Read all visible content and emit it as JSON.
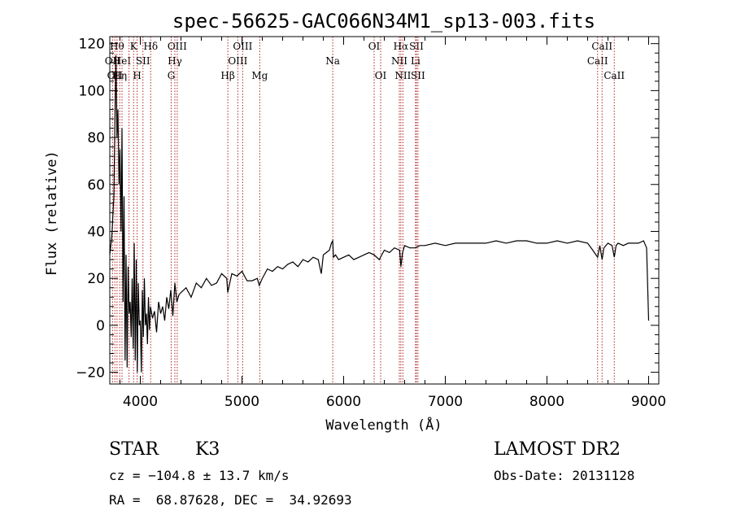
{
  "chart_data": {
    "type": "line",
    "title": "spec-56625-GAC066N34M1_sp13-003.fits",
    "xlabel": "Wavelength (Å)",
    "ylabel": "Flux (relative)",
    "xlim": [
      3700,
      9100
    ],
    "ylim": [
      -25,
      123
    ],
    "x_ticks": [
      4000,
      5000,
      6000,
      7000,
      8000,
      9000
    ],
    "y_ticks": [
      -20,
      0,
      20,
      40,
      60,
      80,
      100,
      120
    ],
    "grid": false,
    "line_color": "#000000",
    "marker_color": "#b22222",
    "series": [
      {
        "x": [
          3700,
          3720,
          3740,
          3760,
          3770,
          3780,
          3790,
          3800,
          3810,
          3820,
          3830,
          3840,
          3850,
          3860,
          3870,
          3880,
          3890,
          3900,
          3910,
          3920,
          3930,
          3940,
          3950,
          3960,
          3970,
          3980,
          3990,
          4000,
          4010,
          4020,
          4030,
          4040,
          4050,
          4060,
          4070,
          4080,
          4090,
          4100,
          4120,
          4140,
          4160,
          4180,
          4200,
          4220,
          4240,
          4260,
          4280,
          4300,
          4320,
          4340,
          4360,
          4380,
          4400,
          4450,
          4500,
          4550,
          4600,
          4650,
          4700,
          4750,
          4800,
          4850,
          4860,
          4900,
          4950,
          5000,
          5050,
          5100,
          5150,
          5170,
          5200,
          5250,
          5300,
          5350,
          5400,
          5450,
          5500,
          5550,
          5600,
          5650,
          5700,
          5750,
          5780,
          5800,
          5830,
          5860,
          5880,
          5893,
          5900,
          5920,
          5950,
          6000,
          6050,
          6100,
          6150,
          6200,
          6250,
          6300,
          6350,
          6400,
          6450,
          6500,
          6550,
          6563,
          6580,
          6600,
          6650,
          6700,
          6750,
          6800,
          6900,
          7000,
          7100,
          7200,
          7300,
          7400,
          7500,
          7600,
          7700,
          7800,
          7900,
          8000,
          8100,
          8200,
          8300,
          8400,
          8450,
          8498,
          8520,
          8542,
          8560,
          8600,
          8640,
          8662,
          8680,
          8700,
          8750,
          8800,
          8850,
          8900,
          8950,
          8980,
          9000
        ],
        "y": [
          30,
          38,
          55,
          115,
          80,
          92,
          60,
          75,
          40,
          84,
          10,
          55,
          -15,
          30,
          -18,
          25,
          5,
          10,
          -5,
          20,
          -10,
          35,
          -15,
          28,
          -20,
          18,
          0,
          2,
          -20,
          15,
          -5,
          20,
          0,
          5,
          -8,
          12,
          -2,
          8,
          3,
          6,
          -3,
          10,
          5,
          8,
          2,
          12,
          7,
          15,
          4,
          18,
          10,
          13,
          14,
          16,
          12,
          18,
          16,
          20,
          17,
          18,
          22,
          20,
          14,
          22,
          21,
          23,
          19,
          19,
          20,
          17,
          20,
          24,
          23,
          25,
          24,
          26,
          27,
          25,
          28,
          27,
          29,
          28,
          22,
          30,
          31,
          32,
          35,
          36,
          29,
          30,
          28,
          29,
          30,
          28,
          29,
          30,
          31,
          30,
          28,
          32,
          31,
          33,
          32,
          25,
          31,
          34,
          33,
          33,
          34,
          34,
          35,
          34,
          35,
          35,
          35,
          35,
          36,
          35,
          36,
          36,
          35,
          35,
          36,
          35,
          36,
          35,
          32,
          29,
          34,
          28,
          33,
          35,
          34,
          29,
          34,
          35,
          34,
          35,
          35,
          35,
          36,
          33,
          2
        ],
        "comment_note": ""
      }
    ],
    "line_markers": [
      {
        "x": 3727,
        "top": "",
        "mid": "OII",
        "bot": ""
      },
      {
        "x": 3750,
        "top": "",
        "mid": "",
        "bot": "OII"
      },
      {
        "x": 3771,
        "top": "Hθ",
        "mid": "",
        "bot": ""
      },
      {
        "x": 3798,
        "top": "",
        "mid": "",
        "bot": "Hη"
      },
      {
        "x": 3820,
        "top": "",
        "mid": "HeI",
        "bot": ""
      },
      {
        "x": 3889,
        "top": "",
        "mid": "",
        "bot": ""
      },
      {
        "x": 3934,
        "top": "K",
        "mid": "",
        "bot": ""
      },
      {
        "x": 3969,
        "top": "",
        "mid": "",
        "bot": "H"
      },
      {
        "x": 4026,
        "top": "",
        "mid": "SII",
        "bot": ""
      },
      {
        "x": 4102,
        "top": "Hδ",
        "mid": "",
        "bot": ""
      },
      {
        "x": 4304,
        "top": "",
        "mid": "",
        "bot": "G"
      },
      {
        "x": 4340,
        "top": "",
        "mid": "Hγ",
        "bot": ""
      },
      {
        "x": 4363,
        "top": "OIII",
        "mid": "",
        "bot": ""
      },
      {
        "x": 4861,
        "top": "",
        "mid": "",
        "bot": "Hβ"
      },
      {
        "x": 4959,
        "top": "",
        "mid": "OIII",
        "bot": ""
      },
      {
        "x": 5007,
        "top": "OIII",
        "mid": "",
        "bot": ""
      },
      {
        "x": 5175,
        "top": "",
        "mid": "",
        "bot": "Mg"
      },
      {
        "x": 5893,
        "top": "",
        "mid": "Na",
        "bot": ""
      },
      {
        "x": 6300,
        "top": "OI",
        "mid": "",
        "bot": ""
      },
      {
        "x": 6364,
        "top": "",
        "mid": "",
        "bot": "OI"
      },
      {
        "x": 6548,
        "top": "",
        "mid": "NII",
        "bot": ""
      },
      {
        "x": 6563,
        "top": "Hα",
        "mid": "",
        "bot": ""
      },
      {
        "x": 6583,
        "top": "",
        "mid": "",
        "bot": "NII"
      },
      {
        "x": 6707,
        "top": "",
        "mid": "Li",
        "bot": ""
      },
      {
        "x": 6716,
        "top": "SII",
        "mid": "",
        "bot": ""
      },
      {
        "x": 6731,
        "top": "",
        "mid": "",
        "bot": "SII"
      },
      {
        "x": 8498,
        "top": "",
        "mid": "CaII",
        "bot": ""
      },
      {
        "x": 8542,
        "top": "CaII",
        "mid": "",
        "bot": ""
      },
      {
        "x": 8662,
        "top": "",
        "mid": "",
        "bot": "CaII"
      }
    ]
  },
  "info": {
    "object_class": "STAR",
    "subclass": "K3",
    "survey": "LAMOST DR2",
    "cz": "cz = −104.8 ± 13.7 km/s",
    "obs_date": "Obs-Date: 20131128",
    "radec": "RA =  68.87628, DEC =  34.92693"
  }
}
